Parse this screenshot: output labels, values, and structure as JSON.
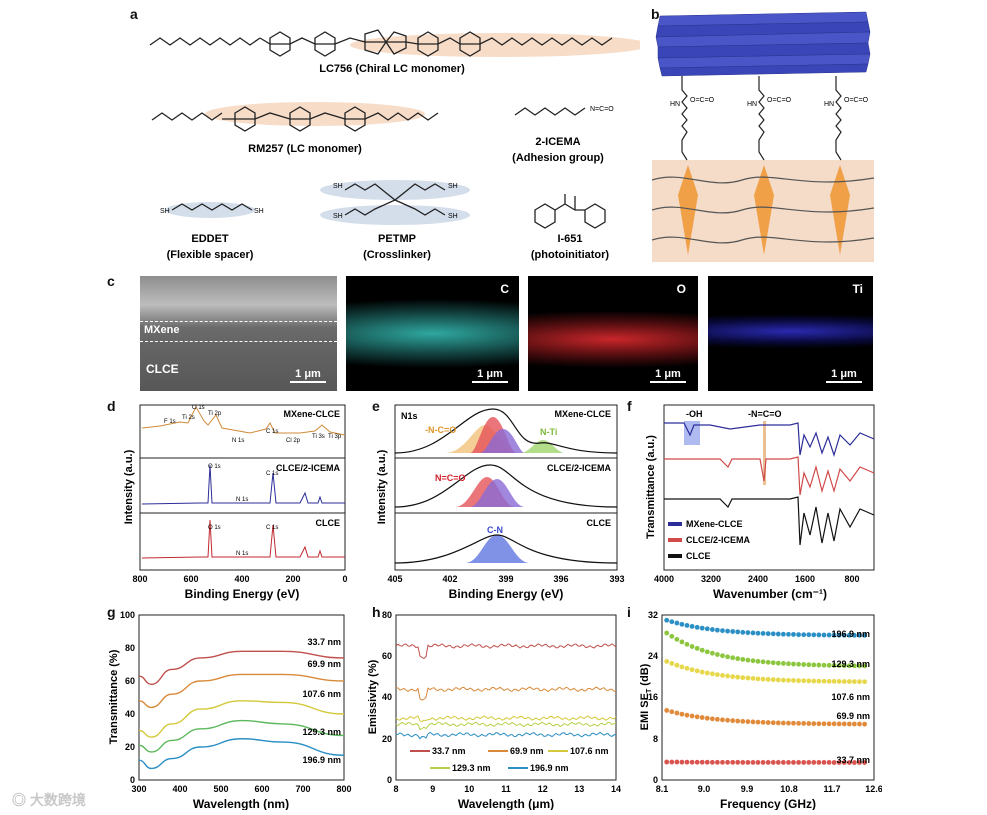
{
  "panel_labels": {
    "a": "a",
    "b": "b",
    "c": "c",
    "d": "d",
    "e": "e",
    "f": "f",
    "g": "g",
    "h": "h",
    "i": "i"
  },
  "panel_a": {
    "lc756_name": "LC756 (Chiral LC monomer)",
    "rm257_name": "RM257 (LC monomer)",
    "icema_name": "2-ICEMA",
    "icema_role": "(Adhesion group)",
    "eddet_name": "EDDET",
    "eddet_role": "(Flexible spacer)",
    "petmp_name": "PETMP",
    "petmp_role": "(Crosslinker)",
    "i651_name": "I-651",
    "i651_role": "(photoinitiator)",
    "atoms": {
      "o": "O",
      "sh": "SH",
      "hn": "HN",
      "oco": "O=C=O",
      "nco": "N=C=O"
    }
  },
  "panel_c": {
    "mxene_label": "MXene",
    "clce_label": "CLCE",
    "scale": "1 μm",
    "maps": [
      "C",
      "O",
      "Ti"
    ]
  },
  "chart_data": [
    {
      "id": "d",
      "type": "line",
      "xlabel": "Binding Energy (eV)",
      "ylabel": "Intensity (a.u.)",
      "xlim": [
        800,
        0
      ],
      "xticks": [
        "800",
        "600",
        "400",
        "200",
        "0"
      ],
      "series": [
        {
          "name": "MXene-CLCE",
          "color": "#d08a3a",
          "peaks": [
            "F 1s",
            "Ti 2s",
            "O 1s",
            "Ti 2p",
            "N 1s",
            "C 1s",
            "Cl 2p",
            "Ti 3s",
            "Ti 3p"
          ]
        },
        {
          "name": "CLCE/2-ICEMA",
          "color": "#2d2d9a",
          "peaks": [
            "O 1s",
            "N 1s",
            "C 1s"
          ]
        },
        {
          "name": "CLCE",
          "color": "#c0292f",
          "peaks": [
            "O 1s",
            "N 1s",
            "C 1s"
          ]
        }
      ]
    },
    {
      "id": "e",
      "type": "line",
      "title": "N1s",
      "xlabel": "Binding Energy (eV)",
      "ylabel": "Intensity (a.u.)",
      "xlim": [
        405,
        393
      ],
      "xticks": [
        "405",
        "402",
        "399",
        "396",
        "393"
      ],
      "series": [
        {
          "name": "MXene-CLCE",
          "components": [
            "-N-C=O",
            "N-Ti"
          ]
        },
        {
          "name": "CLCE/2-ICEMA",
          "components": [
            "N=C=O"
          ]
        },
        {
          "name": "CLCE",
          "components": [
            "C-N"
          ]
        }
      ]
    },
    {
      "id": "f",
      "type": "line",
      "xlabel": "Wavenumber (cm⁻¹)",
      "ylabel": "Transmittance (a.u.)",
      "xlim": [
        4000,
        400
      ],
      "xticks": [
        "4000",
        "3200",
        "2400",
        "1600",
        "800"
      ],
      "annotations": [
        "-OH",
        "-N=C=O"
      ],
      "series": [
        {
          "name": "MXene-CLCE",
          "color": "#2d2d9a"
        },
        {
          "name": "CLCE/2-ICEMA",
          "color": "#d04a4a"
        },
        {
          "name": "CLCE",
          "color": "#111111"
        }
      ]
    },
    {
      "id": "g",
      "type": "line",
      "xlabel": "Wavelength (nm)",
      "ylabel": "Transmittance (%)",
      "xlim": [
        300,
        800
      ],
      "ylim": [
        0,
        100
      ],
      "xticks": [
        "300",
        "400",
        "500",
        "600",
        "700",
        "800"
      ],
      "yticks": [
        "0",
        "20",
        "40",
        "60",
        "80",
        "100"
      ],
      "series": [
        {
          "name": "33.7 nm",
          "color": "#c0504d",
          "x": [
            300,
            330,
            380,
            450,
            550,
            650,
            800
          ],
          "y": [
            63,
            58,
            67,
            74,
            78,
            78,
            74
          ]
        },
        {
          "name": "69.9 nm",
          "color": "#d88a3a",
          "x": [
            300,
            330,
            380,
            450,
            550,
            650,
            800
          ],
          "y": [
            48,
            44,
            52,
            60,
            64,
            64,
            60
          ]
        },
        {
          "name": "107.6 nm",
          "color": "#d4c93a",
          "x": [
            300,
            330,
            380,
            450,
            550,
            650,
            800
          ],
          "y": [
            30,
            26,
            34,
            43,
            48,
            47,
            40
          ]
        },
        {
          "name": "129.3 nm",
          "color": "#5cb85c",
          "x": [
            300,
            330,
            380,
            450,
            550,
            650,
            800
          ],
          "y": [
            21,
            17,
            24,
            31,
            36,
            34,
            27
          ]
        },
        {
          "name": "196.9 nm",
          "color": "#2a8fc4",
          "x": [
            300,
            330,
            380,
            450,
            550,
            650,
            800
          ],
          "y": [
            12,
            7,
            13,
            20,
            25,
            23,
            15
          ]
        }
      ]
    },
    {
      "id": "h",
      "type": "line",
      "xlabel": "Wavelength (μm)",
      "ylabel": "Emissivity (%)",
      "xlim": [
        8,
        14
      ],
      "ylim": [
        0,
        80
      ],
      "xticks": [
        "8",
        "9",
        "10",
        "11",
        "12",
        "13",
        "14"
      ],
      "yticks": [
        "0",
        "20",
        "40",
        "60",
        "80"
      ],
      "series": [
        {
          "name": "33.7 nm",
          "color": "#c0504d",
          "level": 65
        },
        {
          "name": "69.9 nm",
          "color": "#d88a3a",
          "level": 44
        },
        {
          "name": "107.6 nm",
          "color": "#d4c93a",
          "level": 30
        },
        {
          "name": "129.3 nm",
          "color": "#b5d14a",
          "level": 27
        },
        {
          "name": "196.9 nm",
          "color": "#2a8fc4",
          "level": 22
        }
      ]
    },
    {
      "id": "i",
      "type": "scatter",
      "xlabel": "Frequency (GHz)",
      "ylabel": "EMI SE",
      "ylabel_sub": "T",
      "ylabel_unit": "(dB)",
      "xlim": [
        8.1,
        12.6
      ],
      "ylim": [
        0,
        32
      ],
      "xticks": [
        "8.1",
        "9.0",
        "9.9",
        "10.8",
        "11.7",
        "12.6"
      ],
      "yticks": [
        "0",
        "8",
        "16",
        "24",
        "32"
      ],
      "series": [
        {
          "name": "196.9 nm",
          "color": "#2a8fc4",
          "start": 31,
          "end": 28
        },
        {
          "name": "129.3 nm",
          "color": "#8cc63f",
          "start": 28.5,
          "end": 22
        },
        {
          "name": "107.6 nm",
          "color": "#e6d84a",
          "start": 23,
          "end": 19
        },
        {
          "name": "69.9 nm",
          "color": "#e08a3a",
          "start": 13.5,
          "end": 10.8
        },
        {
          "name": "33.7 nm",
          "color": "#d9534f",
          "start": 3.5,
          "end": 3.4
        }
      ]
    }
  ],
  "watermark": "大数跨境"
}
